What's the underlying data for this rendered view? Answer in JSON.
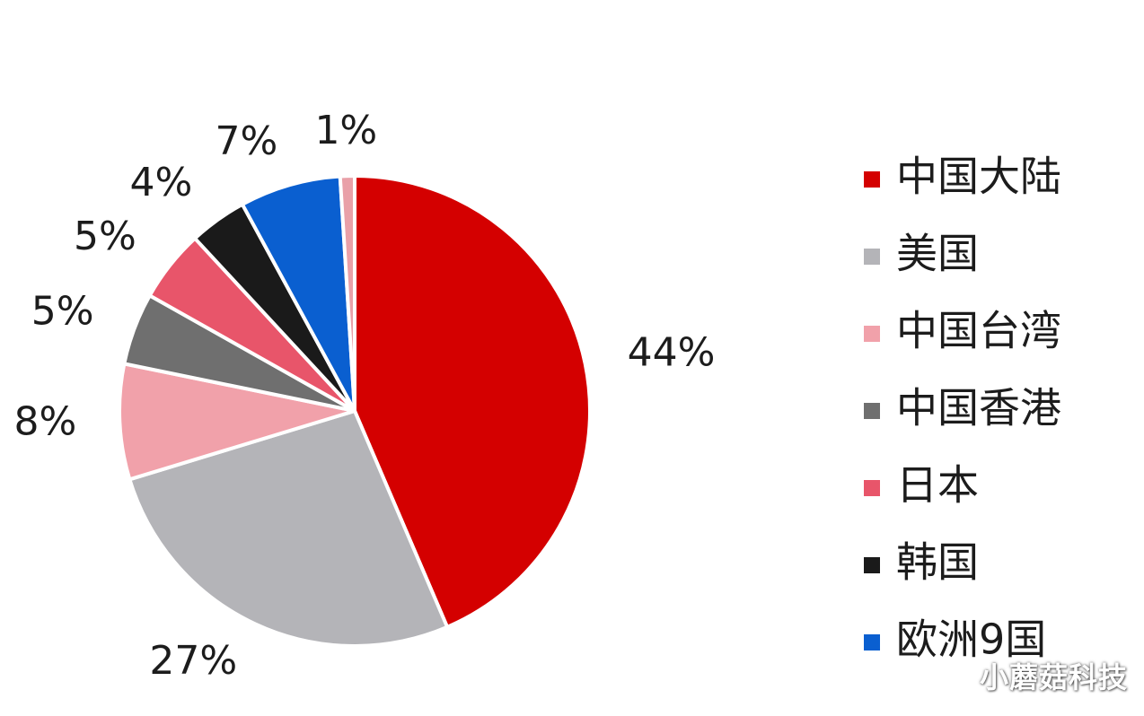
{
  "chart_data": {
    "type": "pie",
    "title": "",
    "legend_position": "right",
    "slices": [
      {
        "name": "中国大陆",
        "value": 44,
        "label": "44%",
        "color": "#d40000"
      },
      {
        "name": "美国",
        "value": 27,
        "label": "27%",
        "color": "#b4b4b8"
      },
      {
        "name": "中国台湾",
        "value": 8,
        "label": "8%",
        "color": "#f1a1aa"
      },
      {
        "name": "中国香港",
        "value": 5,
        "label": "5%",
        "color": "#6f6f6f"
      },
      {
        "name": "日本",
        "value": 5,
        "label": "5%",
        "color": "#e8556a"
      },
      {
        "name": "韩国",
        "value": 4,
        "label": "4%",
        "color": "#1a1a1a"
      },
      {
        "name": "欧洲9国",
        "value": 7,
        "label": "7%",
        "color": "#0a5fd0"
      },
      {
        "name": "",
        "value": 1,
        "label": "1%",
        "color": "#e9a0a8"
      }
    ]
  },
  "watermark": {
    "text": "小蘑菇科技"
  }
}
